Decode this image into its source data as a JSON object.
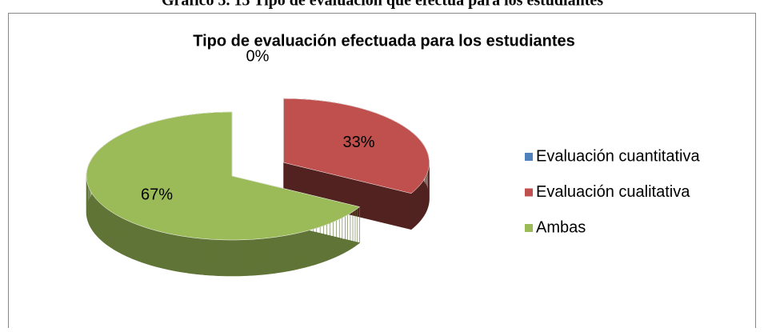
{
  "caption": "Gráfico 5. 15 Tipo de evaluación que efectúa para los estudiantes",
  "chart_data": {
    "type": "pie",
    "title": "Tipo de evaluación efectuada para los estudiantes",
    "categories": [
      "Evaluación cuantitativa",
      "Evaluación cualitativa",
      "Ambas"
    ],
    "values": [
      0,
      33,
      67
    ],
    "value_labels": [
      "0%",
      "33%",
      "67%"
    ],
    "colors": [
      "#4f81bd",
      "#c0504d",
      "#9bbb59"
    ],
    "legend": "right"
  }
}
